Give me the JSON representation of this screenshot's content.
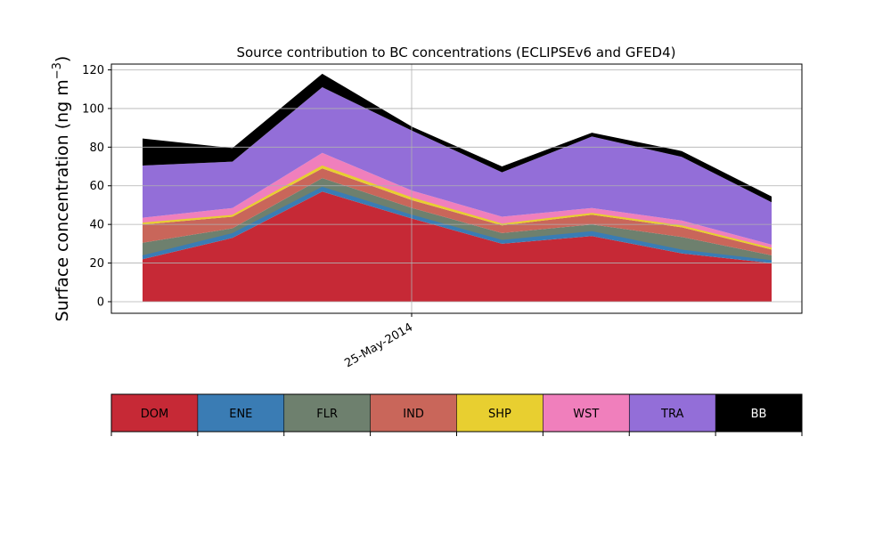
{
  "chart_data": {
    "type": "area",
    "stacked": true,
    "title": "Source contribution to BC concentrations (ECLIPSEv6 and GFED4)",
    "ylabel": "Surface concentration (ng m",
    "ylabel_unit_exp": "−3",
    "ylabel_close": ")",
    "ylim": [
      -6,
      123
    ],
    "yticks": [
      0,
      20,
      40,
      60,
      80,
      100,
      120
    ],
    "grid": true,
    "x_tick_label": "25-May-2014",
    "x": [
      "t1",
      "t2",
      "t3",
      "t4",
      "t5",
      "t6",
      "t7",
      "t8"
    ],
    "series": [
      {
        "name": "DOM",
        "color": "#c62936",
        "values": [
          22,
          33,
          57,
          43,
          30,
          34,
          25,
          20
        ]
      },
      {
        "name": "ENE",
        "color": "#3a7cb4",
        "values": [
          1.5,
          2,
          2,
          1.5,
          1.5,
          2,
          1.5,
          1
        ]
      },
      {
        "name": "FLR",
        "color": "#6e806e",
        "values": [
          7,
          3,
          5,
          4,
          4,
          4,
          7,
          3
        ]
      },
      {
        "name": "IND",
        "color": "#c9665a",
        "values": [
          9.5,
          6,
          5,
          4,
          4,
          5,
          5,
          3
        ]
      },
      {
        "name": "SHP",
        "color": "#e8cf30",
        "values": [
          0.5,
          0.5,
          1,
          1,
          0.5,
          0.5,
          0.5,
          0.5
        ]
      },
      {
        "name": "WST",
        "color": "#f07fbc",
        "values": [
          3,
          4,
          7,
          4,
          4,
          3,
          3,
          2
        ]
      },
      {
        "name": "TRA",
        "color": "#936ed8",
        "values": [
          27,
          24,
          34,
          31,
          23,
          37,
          33,
          22
        ]
      },
      {
        "name": "BB",
        "color": "#000000",
        "values": [
          14,
          7,
          7,
          2,
          3,
          2,
          3,
          3
        ]
      }
    ]
  }
}
